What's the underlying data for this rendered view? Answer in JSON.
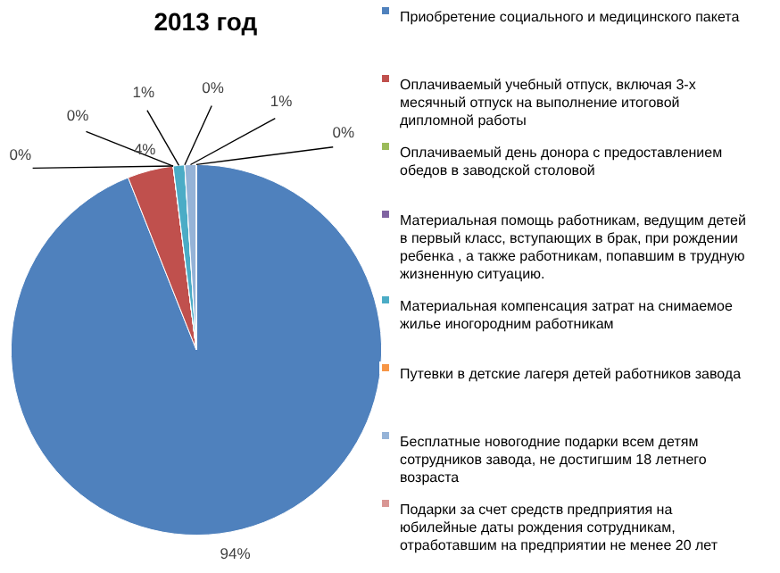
{
  "chart_data": {
    "type": "pie",
    "title": "2013 год",
    "categories": [
      "Приобретение социального и медицинского пакета",
      "Оплачиваемый учебный отпуск, включая 3-х месячный отпуск на выполнение итоговой дипломной работы",
      "Оплачиваемый день донора с предоставлением обедов в заводской столовой",
      "Материальная помощь работникам, ведущим детей в первый класс, вступающих в брак, при рождении ребенка , а также работникам, попавшим в трудную жизненную ситуацию.",
      "Материальная компенсация затрат на снимаемое жилье иногородним работникам",
      "Путевки в детские лагеря детей работников завода",
      "Бесплатные новогодние подарки всем детям сотрудников завода, не достигшим 18 летнего возраста",
      "Подарки за счет средств предприятия на юбилейные даты рождения сотрудникам, отработавшим на предприятии не менее 20 лет"
    ],
    "values": [
      94,
      4,
      0,
      0,
      1,
      0,
      1,
      0
    ],
    "colors": [
      "#4f81bd",
      "#c0504d",
      "#9bbb59",
      "#8064a2",
      "#4bacc6",
      "#f79646",
      "#95b3d7",
      "#d99694"
    ],
    "value_labels": [
      "94%",
      "4%",
      "0%",
      "0%",
      "1%",
      "0%",
      "1%",
      "0%"
    ],
    "legend": "right"
  }
}
